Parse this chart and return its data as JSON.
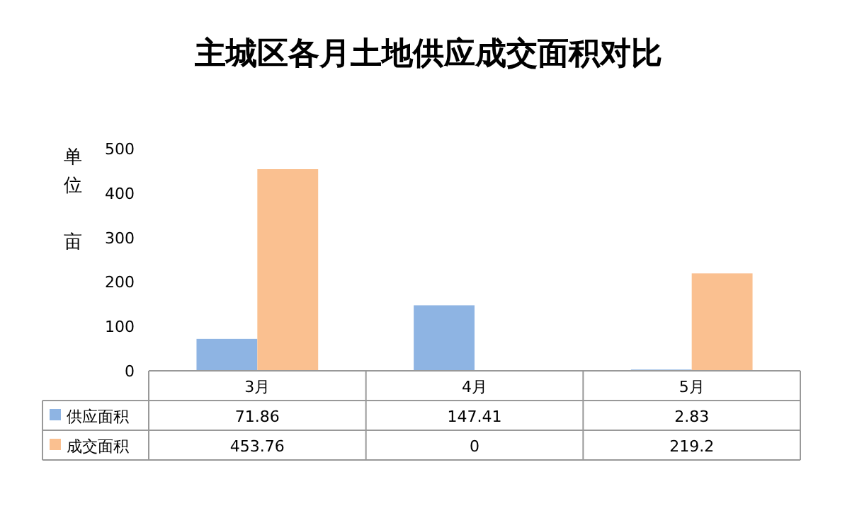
{
  "chart_data": {
    "type": "bar",
    "title": "主城区各月土地供应成交面积对比",
    "ylabel": "单位亩",
    "categories": [
      "3月",
      "4月",
      "5月"
    ],
    "series": [
      {
        "name": "供应面积",
        "color": "#8eb4e3",
        "values": [
          71.86,
          147.41,
          2.83
        ]
      },
      {
        "name": "成交面积",
        "color": "#fac090",
        "values": [
          453.76,
          0,
          219.2
        ]
      }
    ],
    "ylim": [
      0,
      500
    ],
    "yticks": [
      0,
      100,
      200,
      300,
      400,
      500
    ],
    "data_labels": true,
    "legend": "bottom",
    "grid": false
  }
}
